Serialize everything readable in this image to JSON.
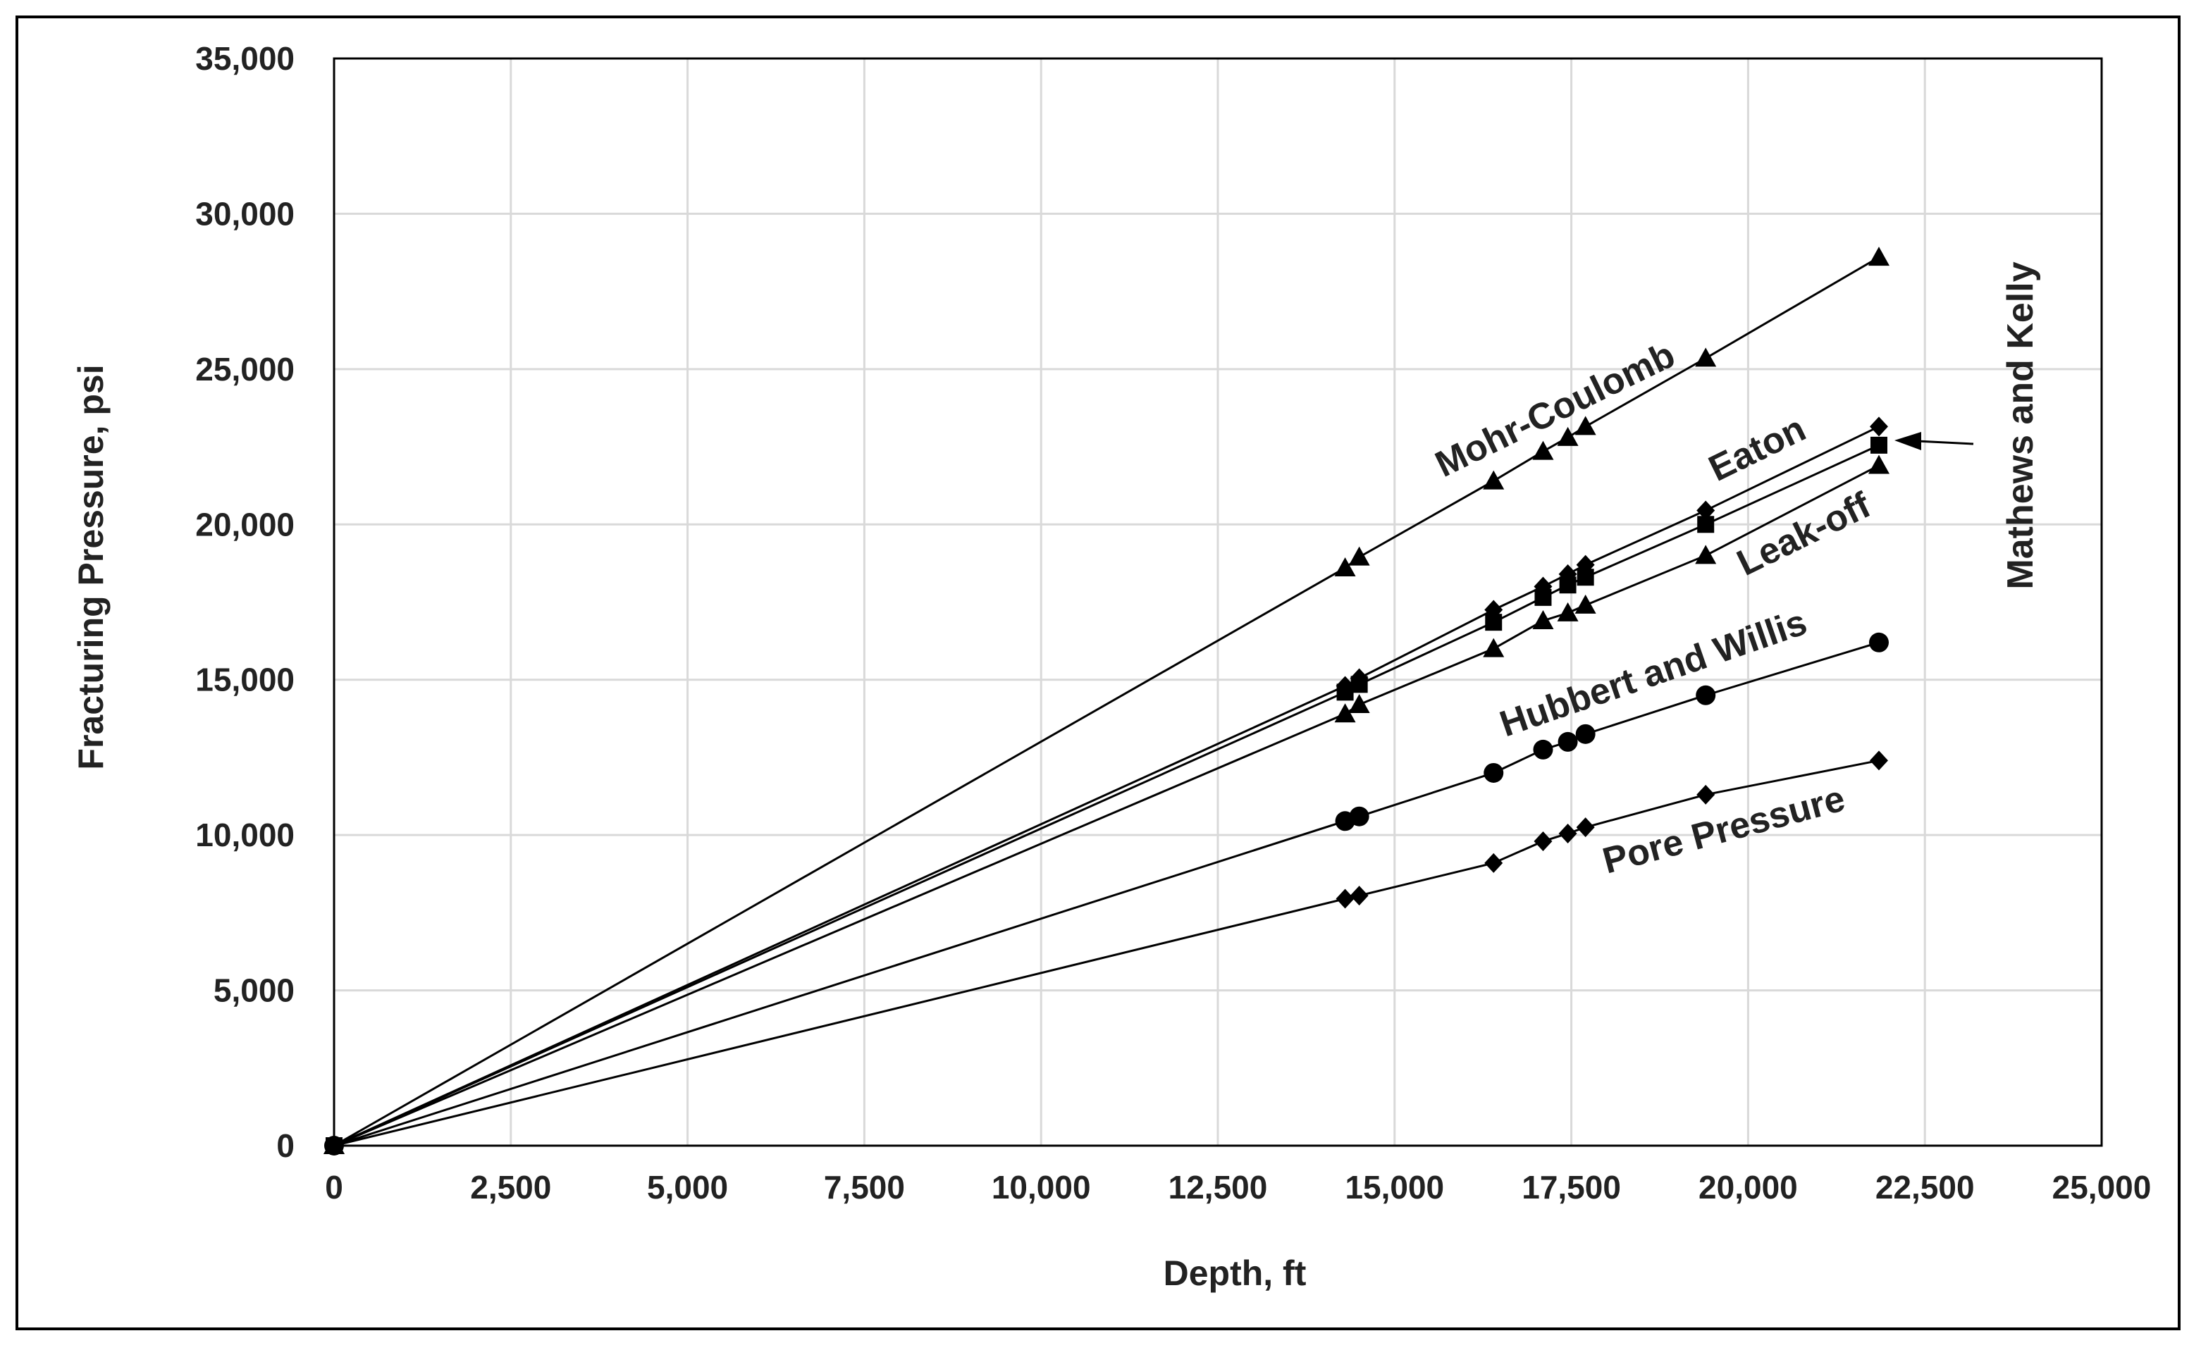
{
  "chart_data": {
    "type": "line",
    "title": "",
    "xlabel": "Depth, ft",
    "ylabel": "Fracturing Pressure, psi",
    "xlim": [
      0,
      25000
    ],
    "ylim": [
      0,
      35000
    ],
    "x_ticks": [
      0,
      2500,
      5000,
      7500,
      10000,
      12500,
      15000,
      17500,
      20000,
      22500,
      25000
    ],
    "y_ticks": [
      0,
      5000,
      10000,
      15000,
      20000,
      25000,
      30000,
      35000
    ],
    "x_tick_labels": [
      "0",
      "2,500",
      "5,000",
      "7,500",
      "10,000",
      "12,500",
      "15,000",
      "17,500",
      "20,000",
      "22,500",
      "25,000"
    ],
    "y_tick_labels": [
      "0",
      "5,000",
      "10,000",
      "15,000",
      "20,000",
      "25,000",
      "30,000",
      "35,000"
    ],
    "grid": true,
    "legend": "none (series labeled directly on chart)",
    "series": [
      {
        "name": "Mohr-Coulomb",
        "marker": "triangle",
        "points": [
          [
            0,
            0
          ],
          [
            14300,
            18600
          ],
          [
            14500,
            18950
          ],
          [
            16400,
            21400
          ],
          [
            17100,
            22350
          ],
          [
            17450,
            22800
          ],
          [
            17700,
            23150
          ],
          [
            19400,
            25350
          ],
          [
            21850,
            28600
          ]
        ]
      },
      {
        "name": "Mathews and Kelly",
        "marker": "diamond",
        "points": [
          [
            0,
            0
          ],
          [
            14300,
            14800
          ],
          [
            14500,
            15050
          ],
          [
            16400,
            17250
          ],
          [
            17100,
            18000
          ],
          [
            17450,
            18400
          ],
          [
            17700,
            18700
          ],
          [
            19400,
            20450
          ],
          [
            21850,
            23150
          ]
        ]
      },
      {
        "name": "Eaton",
        "marker": "square",
        "points": [
          [
            0,
            0
          ],
          [
            14300,
            14600
          ],
          [
            14500,
            14850
          ],
          [
            16400,
            16850
          ],
          [
            17100,
            17650
          ],
          [
            17450,
            18050
          ],
          [
            17700,
            18300
          ],
          [
            19400,
            20000
          ],
          [
            21850,
            22550
          ]
        ]
      },
      {
        "name": "Leak-off",
        "marker": "triangle",
        "points": [
          [
            0,
            0
          ],
          [
            14300,
            13900
          ],
          [
            14500,
            14200
          ],
          [
            16400,
            16000
          ],
          [
            17100,
            16900
          ],
          [
            17450,
            17150
          ],
          [
            17700,
            17400
          ],
          [
            19400,
            19000
          ],
          [
            21850,
            21900
          ]
        ]
      },
      {
        "name": "Hubbert and Willis",
        "marker": "circle",
        "points": [
          [
            0,
            0
          ],
          [
            14300,
            10450
          ],
          [
            14500,
            10600
          ],
          [
            16400,
            12000
          ],
          [
            17100,
            12750
          ],
          [
            17450,
            13000
          ],
          [
            17700,
            13250
          ],
          [
            19400,
            14500
          ],
          [
            21850,
            16200
          ]
        ]
      },
      {
        "name": "Pore Pressure",
        "marker": "diamond",
        "points": [
          [
            0,
            0
          ],
          [
            14300,
            7950
          ],
          [
            14500,
            8050
          ],
          [
            16400,
            9100
          ],
          [
            17100,
            9800
          ],
          [
            17450,
            10050
          ],
          [
            17700,
            10250
          ],
          [
            19400,
            11300
          ],
          [
            21850,
            12400
          ]
        ]
      }
    ],
    "annotations": {
      "mohr_coulomb": "Mohr-Coulomb",
      "eaton": "Eaton",
      "leak_off": "Leak-off",
      "hubbert_willis": "Hubbert and Willis",
      "pore_pressure": "Pore Pressure",
      "mathews_kelly": "Mathews and Kelly"
    }
  }
}
